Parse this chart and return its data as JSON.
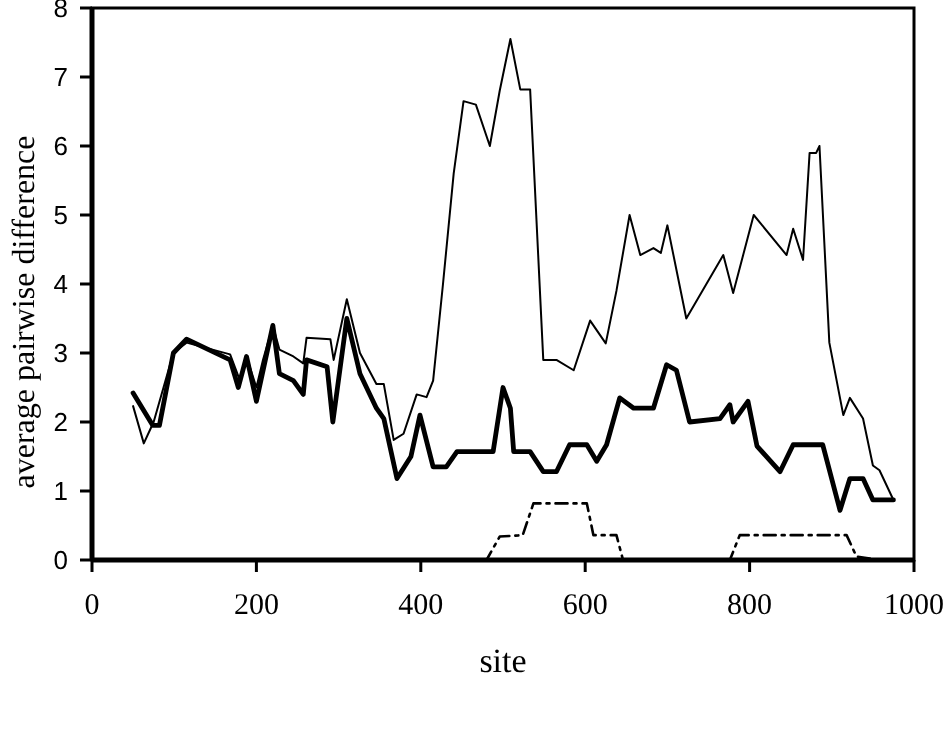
{
  "chart_data": {
    "type": "line",
    "xlabel": "site",
    "ylabel": "average pairwise difference",
    "xlim": [
      0,
      1000
    ],
    "xticks": [
      0,
      200,
      400,
      600,
      800,
      1000
    ],
    "ylim": [
      0,
      8
    ],
    "yticks": [
      0,
      1,
      2,
      3,
      4,
      5,
      6,
      7,
      8
    ],
    "grid": false,
    "series": [
      {
        "color": "#000000",
        "line_style": "solid",
        "x": [
          50,
          63,
          75,
          99,
          115,
          168,
          180,
          188,
          200,
          208,
          220,
          228,
          245,
          257,
          261,
          290,
          294,
          310,
          326,
          346,
          355,
          367,
          379,
          395,
          407,
          415,
          427,
          440,
          452,
          467,
          484,
          496,
          509,
          521,
          533,
          549,
          565,
          586,
          606,
          625,
          638,
          654,
          667,
          683,
          692,
          700,
          723,
          768,
          780,
          805,
          845,
          853,
          865,
          873,
          881,
          885,
          897,
          914,
          922,
          938,
          950,
          958,
          975
        ],
        "values": [
          2.23,
          1.69,
          2.0,
          3.0,
          3.15,
          2.98,
          2.6,
          2.95,
          2.5,
          2.9,
          3.4,
          3.05,
          2.95,
          2.85,
          3.22,
          3.2,
          2.9,
          3.78,
          3.0,
          2.55,
          2.55,
          1.74,
          1.83,
          2.4,
          2.36,
          2.6,
          4.0,
          5.6,
          6.65,
          6.6,
          6.0,
          6.8,
          7.55,
          6.82,
          6.82,
          2.9,
          2.9,
          2.75,
          3.47,
          3.14,
          3.9,
          5.0,
          4.42,
          4.52,
          4.45,
          4.85,
          3.5,
          4.42,
          3.87,
          5.0,
          4.42,
          4.8,
          4.35,
          5.9,
          5.9,
          6.0,
          3.15,
          2.1,
          2.35,
          2.05,
          1.37,
          1.3,
          0.87
        ]
      },
      {
        "color": "#000000",
        "line_style": "solid",
        "x": [
          50,
          74,
          82,
          99,
          115,
          168,
          178,
          188,
          200,
          220,
          228,
          245,
          257,
          261,
          286,
          293,
          310,
          326,
          346,
          355,
          371,
          388,
          399,
          415,
          431,
          444,
          488,
          500,
          509,
          513,
          533,
          549,
          565,
          581,
          602,
          614,
          626,
          642,
          659,
          683,
          699,
          711,
          727,
          764,
          776,
          780,
          798,
          809,
          837,
          853,
          889,
          910,
          922,
          938,
          950,
          975
        ],
        "values": [
          2.42,
          1.95,
          1.95,
          3.0,
          3.2,
          2.9,
          2.5,
          2.95,
          2.3,
          3.4,
          2.7,
          2.6,
          2.4,
          2.9,
          2.8,
          2.0,
          3.5,
          2.7,
          2.2,
          2.05,
          1.18,
          1.5,
          2.1,
          1.35,
          1.35,
          1.57,
          1.57,
          2.5,
          2.2,
          1.57,
          1.57,
          1.28,
          1.28,
          1.67,
          1.67,
          1.43,
          1.67,
          2.35,
          2.2,
          2.2,
          2.83,
          2.75,
          2.0,
          2.05,
          2.25,
          2.0,
          2.3,
          1.65,
          1.28,
          1.67,
          1.67,
          0.72,
          1.18,
          1.18,
          0.87,
          0.87
        ]
      },
      {
        "color": "#000000",
        "line_style": "dashed",
        "x": [
          50,
          480,
          496,
          524,
          537,
          602,
          610,
          638,
          646,
          776,
          788,
          918,
          930,
          958
        ],
        "values": [
          0,
          0,
          0.34,
          0.36,
          0.82,
          0.82,
          0.36,
          0.36,
          0,
          0,
          0.36,
          0.36,
          0.05,
          0
        ]
      }
    ]
  }
}
